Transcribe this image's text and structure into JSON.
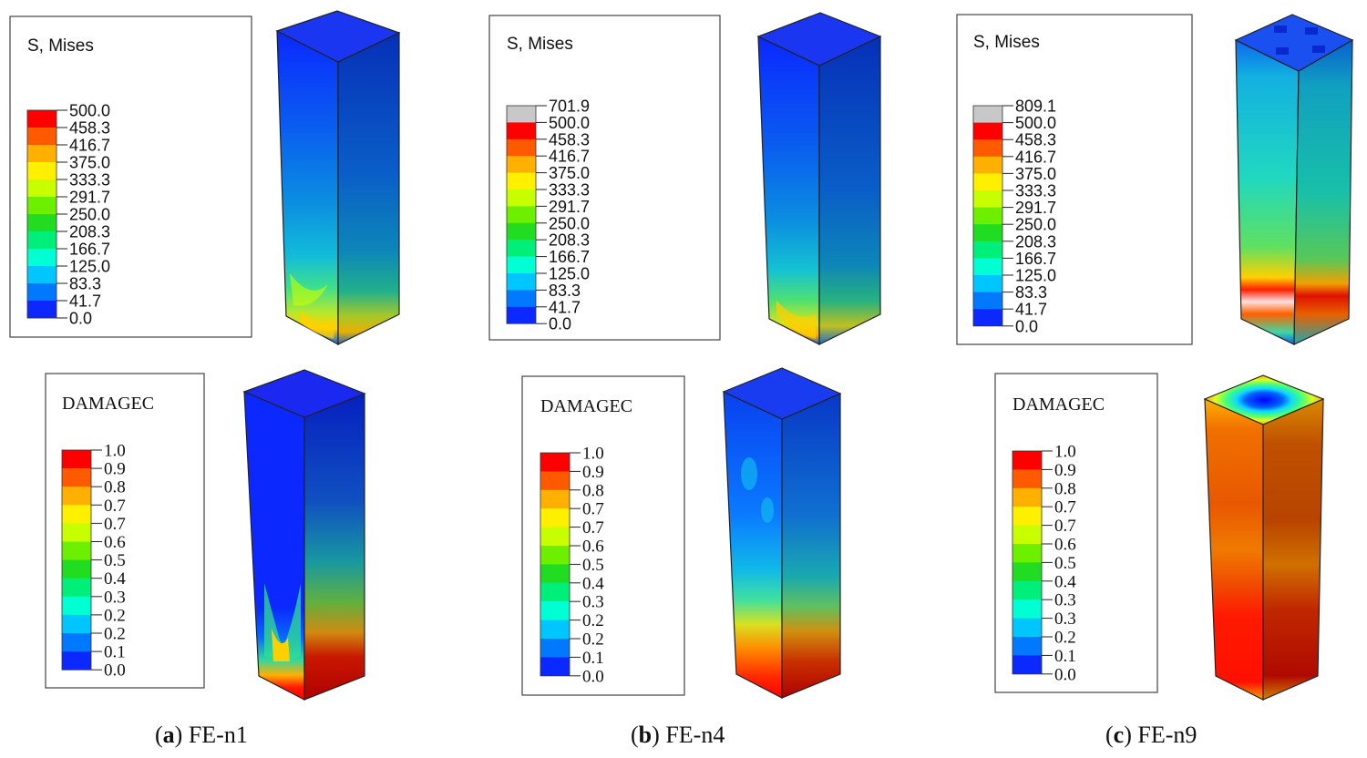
{
  "figure": {
    "panels": [
      {
        "id": "a",
        "caption_letter": "a",
        "caption_text": "FE-n1",
        "mises": {
          "title": "S, Mises",
          "levels": [
            "500.0",
            "458.3",
            "416.7",
            "375.0",
            "333.3",
            "291.7",
            "250.0",
            "208.3",
            "166.7",
            "125.0",
            "83.3",
            "41.7",
            "0.0"
          ],
          "colors": [
            "#ff0000",
            "#ff5a00",
            "#ffb000",
            "#ffef00",
            "#c8ff00",
            "#6cf000",
            "#22dc22",
            "#00ef7a",
            "#00ffd2",
            "#00c6ff",
            "#0078ff",
            "#0a28ff"
          ]
        },
        "damage": {
          "title": "DAMAGEC",
          "levels": [
            "1.0",
            "0.9",
            "0.8",
            "0.7",
            "0.7",
            "0.6",
            "0.5",
            "0.4",
            "0.3",
            "0.2",
            "0.2",
            "0.1",
            "0.0"
          ],
          "colors": [
            "#ff0000",
            "#ff5a00",
            "#ffb000",
            "#ffef00",
            "#c8ff00",
            "#6cf000",
            "#22dc22",
            "#00ef7a",
            "#00ffd2",
            "#00c6ff",
            "#0078ff",
            "#0a28ff"
          ]
        }
      },
      {
        "id": "b",
        "caption_letter": "b",
        "caption_text": "FE-n4",
        "mises": {
          "title": "S, Mises",
          "levels": [
            "701.9",
            "500.0",
            "458.3",
            "416.7",
            "375.0",
            "333.3",
            "291.7",
            "250.0",
            "208.3",
            "166.7",
            "125.0",
            "83.3",
            "41.7",
            "0.0"
          ],
          "colors": [
            "#c8c8c8",
            "#ff0000",
            "#ff5a00",
            "#ffb000",
            "#ffef00",
            "#c8ff00",
            "#6cf000",
            "#22dc22",
            "#00ef7a",
            "#00ffd2",
            "#00c6ff",
            "#0078ff",
            "#0a28ff"
          ]
        },
        "damage": {
          "title": "DAMAGEC",
          "levels": [
            "1.0",
            "0.9",
            "0.8",
            "0.7",
            "0.7",
            "0.6",
            "0.5",
            "0.4",
            "0.3",
            "0.2",
            "0.2",
            "0.1",
            "0.0"
          ],
          "colors": [
            "#ff0000",
            "#ff5a00",
            "#ffb000",
            "#ffef00",
            "#c8ff00",
            "#6cf000",
            "#22dc22",
            "#00ef7a",
            "#00ffd2",
            "#00c6ff",
            "#0078ff",
            "#0a28ff"
          ]
        }
      },
      {
        "id": "c",
        "caption_letter": "c",
        "caption_text": "FE-n9",
        "mises": {
          "title": "S, Mises",
          "levels": [
            "809.1",
            "500.0",
            "458.3",
            "416.7",
            "375.0",
            "333.3",
            "291.7",
            "250.0",
            "208.3",
            "166.7",
            "125.0",
            "83.3",
            "41.7",
            "0.0"
          ],
          "colors": [
            "#c8c8c8",
            "#ff0000",
            "#ff5a00",
            "#ffb000",
            "#ffef00",
            "#c8ff00",
            "#6cf000",
            "#22dc22",
            "#00ef7a",
            "#00ffd2",
            "#00c6ff",
            "#0078ff",
            "#0a28ff"
          ]
        },
        "damage": {
          "title": "DAMAGEC",
          "levels": [
            "1.0",
            "0.9",
            "0.8",
            "0.7",
            "0.7",
            "0.6",
            "0.5",
            "0.4",
            "0.3",
            "0.3",
            "0.2",
            "0.1",
            "0.0"
          ],
          "colors": [
            "#ff0000",
            "#ff5a00",
            "#ffb000",
            "#ffef00",
            "#c8ff00",
            "#6cf000",
            "#22dc22",
            "#00ef7a",
            "#00ffd2",
            "#00c6ff",
            "#0078ff",
            "#0a28ff"
          ]
        }
      }
    ]
  }
}
